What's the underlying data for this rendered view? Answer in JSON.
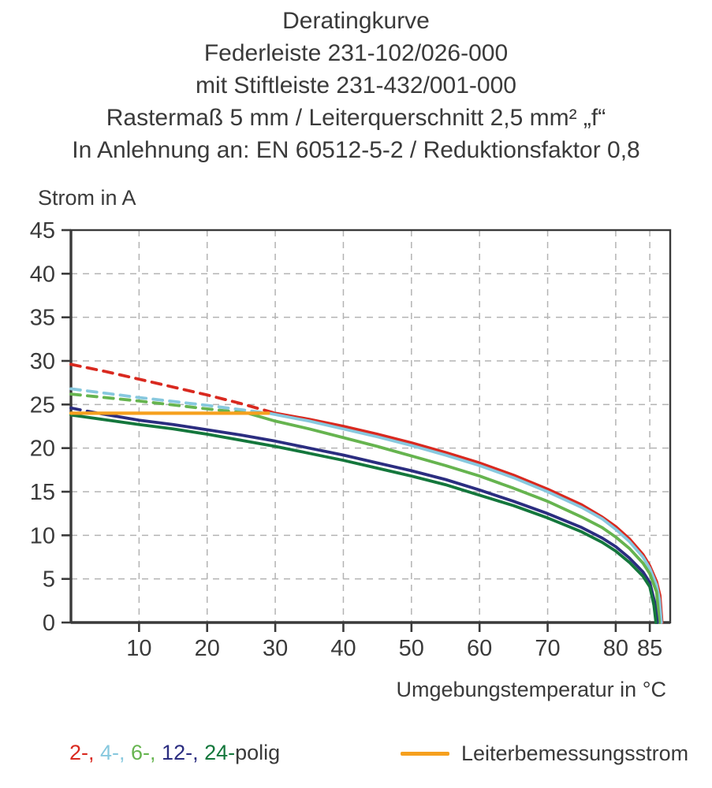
{
  "header": {
    "lines": [
      "Deratingkurve",
      "Federleiste 231-102/026-000",
      "mit Stiftleiste 231-432/001-000",
      "Rastermaß 5 mm / Leiterquerschnitt 2,5 mm² „f“",
      "In Anlehnung an: EN 60512-5-2 / Reduktionsfaktor 0,8"
    ]
  },
  "chart_data": {
    "type": "line",
    "title": "Deratingkurve",
    "ylabel": "Strom in A",
    "xlabel": "Umgebungstemperatur in °C",
    "xlim": [
      0,
      88
    ],
    "ylim": [
      0,
      45
    ],
    "x_ticks": [
      10,
      20,
      30,
      40,
      50,
      60,
      70,
      80,
      85
    ],
    "y_ticks": [
      0,
      5,
      10,
      15,
      20,
      25,
      30,
      35,
      40,
      45
    ],
    "grid": true,
    "legend_position": "bottom",
    "rated_current_a": 24,
    "axis_color": "#3a3a3a",
    "grid_color": "#b3b3b3",
    "series": [
      {
        "name": "2-polig",
        "color": "#d9291f",
        "dash_until": 30,
        "points": [
          [
            0,
            29.6
          ],
          [
            5,
            28.8
          ],
          [
            10,
            27.9
          ],
          [
            15,
            27.0
          ],
          [
            20,
            26.1
          ],
          [
            25,
            25.1
          ],
          [
            30,
            24.0
          ],
          [
            35,
            23.3
          ],
          [
            40,
            22.5
          ],
          [
            45,
            21.6
          ],
          [
            50,
            20.6
          ],
          [
            55,
            19.5
          ],
          [
            60,
            18.3
          ],
          [
            65,
            16.9
          ],
          [
            70,
            15.3
          ],
          [
            75,
            13.5
          ],
          [
            78,
            12.1
          ],
          [
            80,
            11.0
          ],
          [
            82,
            9.6
          ],
          [
            84,
            7.8
          ],
          [
            85,
            6.5
          ],
          [
            86,
            4.7
          ],
          [
            86.5,
            3.1
          ],
          [
            86.8,
            0
          ]
        ]
      },
      {
        "name": "4-polig",
        "color": "#87c8de",
        "dash_until": 29,
        "points": [
          [
            0,
            26.8
          ],
          [
            10,
            25.8
          ],
          [
            20,
            24.9
          ],
          [
            29,
            24.0
          ],
          [
            35,
            23.1
          ],
          [
            40,
            22.2
          ],
          [
            45,
            21.3
          ],
          [
            50,
            20.3
          ],
          [
            55,
            19.2
          ],
          [
            60,
            18.0
          ],
          [
            65,
            16.6
          ],
          [
            70,
            15.0
          ],
          [
            75,
            13.2
          ],
          [
            78,
            11.9
          ],
          [
            80,
            10.7
          ],
          [
            82,
            9.3
          ],
          [
            84,
            7.5
          ],
          [
            85,
            6.2
          ],
          [
            86,
            4.3
          ],
          [
            86.4,
            2.7
          ],
          [
            86.7,
            0
          ]
        ]
      },
      {
        "name": "6-polig",
        "color": "#66b44f",
        "dash_until": 26,
        "points": [
          [
            0,
            26.2
          ],
          [
            10,
            25.4
          ],
          [
            20,
            24.5
          ],
          [
            26,
            24.0
          ],
          [
            30,
            23.1
          ],
          [
            35,
            22.2
          ],
          [
            40,
            21.2
          ],
          [
            45,
            20.2
          ],
          [
            50,
            19.1
          ],
          [
            55,
            18.0
          ],
          [
            60,
            16.8
          ],
          [
            65,
            15.4
          ],
          [
            70,
            13.9
          ],
          [
            75,
            12.1
          ],
          [
            78,
            10.9
          ],
          [
            80,
            9.8
          ],
          [
            82,
            8.5
          ],
          [
            84,
            6.8
          ],
          [
            85,
            5.6
          ],
          [
            86,
            3.5
          ],
          [
            86.4,
            0
          ]
        ]
      },
      {
        "name": "12-polig",
        "color": "#2b2d80",
        "dash_until": 4,
        "points": [
          [
            0,
            24.6
          ],
          [
            4,
            24.0
          ],
          [
            10,
            23.2
          ],
          [
            15,
            22.7
          ],
          [
            20,
            22.1
          ],
          [
            25,
            21.5
          ],
          [
            30,
            20.8
          ],
          [
            35,
            20.0
          ],
          [
            40,
            19.2
          ],
          [
            45,
            18.3
          ],
          [
            50,
            17.4
          ],
          [
            55,
            16.4
          ],
          [
            60,
            15.2
          ],
          [
            65,
            13.9
          ],
          [
            70,
            12.5
          ],
          [
            75,
            10.9
          ],
          [
            78,
            9.7
          ],
          [
            80,
            8.7
          ],
          [
            82,
            7.4
          ],
          [
            84,
            5.8
          ],
          [
            85,
            4.6
          ],
          [
            85.7,
            2.4
          ],
          [
            86.1,
            0
          ]
        ]
      },
      {
        "name": "24-polig",
        "color": "#14773c",
        "dash_until": -1,
        "points": [
          [
            0,
            23.8
          ],
          [
            10,
            22.7
          ],
          [
            15,
            22.2
          ],
          [
            20,
            21.6
          ],
          [
            25,
            20.9
          ],
          [
            30,
            20.2
          ],
          [
            35,
            19.4
          ],
          [
            40,
            18.6
          ],
          [
            45,
            17.7
          ],
          [
            50,
            16.8
          ],
          [
            55,
            15.8
          ],
          [
            60,
            14.6
          ],
          [
            65,
            13.4
          ],
          [
            70,
            12.0
          ],
          [
            75,
            10.4
          ],
          [
            78,
            9.2
          ],
          [
            80,
            8.2
          ],
          [
            82,
            6.9
          ],
          [
            84,
            5.3
          ],
          [
            85,
            4.1
          ],
          [
            85.6,
            2.0
          ],
          [
            85.9,
            0
          ]
        ]
      },
      {
        "name": "Leiterbemessungsstrom",
        "color": "#f6a01e",
        "dash_until": -1,
        "width": 4.2,
        "points": [
          [
            0,
            24
          ],
          [
            29,
            24
          ]
        ]
      }
    ]
  },
  "legend": {
    "pole_parts": [
      {
        "text": "2-, ",
        "color": "#d9291f"
      },
      {
        "text": "4-, ",
        "color": "#87c8de"
      },
      {
        "text": "6-, ",
        "color": "#66b44f"
      },
      {
        "text": "12-, ",
        "color": "#2b2d80"
      },
      {
        "text": "24-",
        "color": "#14773c"
      },
      {
        "text": "polig",
        "color": "#3a3a3a"
      }
    ],
    "rated": {
      "label": "Leiterbemessungsstrom",
      "color": "#f6a01e"
    }
  }
}
